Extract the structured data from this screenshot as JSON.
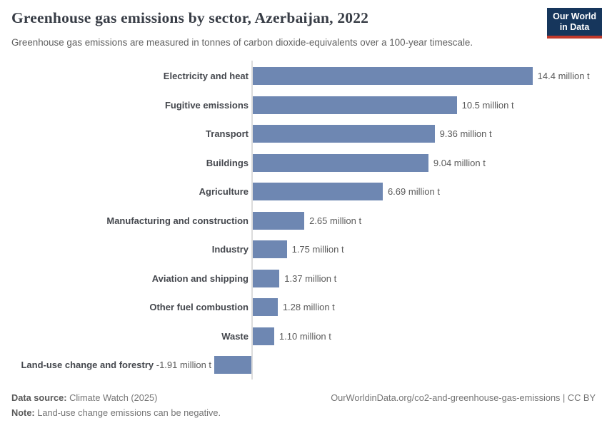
{
  "header": {
    "title": "Greenhouse gas emissions by sector, Azerbaijan, 2022",
    "subtitle": "Greenhouse gas emissions are measured in tonnes of carbon dioxide-equivalents over a 100-year timescale.",
    "logo": {
      "line1": "Our World",
      "line2": "in Data"
    }
  },
  "chart_data": {
    "type": "bar",
    "orientation": "horizontal",
    "title": "Greenhouse gas emissions by sector, Azerbaijan, 2022",
    "unit": "million t",
    "xlim": [
      -2,
      15
    ],
    "grid": false,
    "legend": "none",
    "categories": [
      "Electricity and heat",
      "Fugitive emissions",
      "Transport",
      "Buildings",
      "Agriculture",
      "Manufacturing and construction",
      "Industry",
      "Aviation and shipping",
      "Other fuel combustion",
      "Waste",
      "Land-use change and forestry"
    ],
    "values": [
      14.4,
      10.5,
      9.36,
      9.04,
      6.69,
      2.65,
      1.75,
      1.37,
      1.28,
      1.1,
      -1.91
    ],
    "rows": [
      {
        "category": "Electricity and heat",
        "value": 14.4,
        "display": "14.4 million t"
      },
      {
        "category": "Fugitive emissions",
        "value": 10.5,
        "display": "10.5 million t"
      },
      {
        "category": "Transport",
        "value": 9.36,
        "display": "9.36 million t"
      },
      {
        "category": "Buildings",
        "value": 9.04,
        "display": "9.04 million t"
      },
      {
        "category": "Agriculture",
        "value": 6.69,
        "display": "6.69 million t"
      },
      {
        "category": "Manufacturing and construction",
        "value": 2.65,
        "display": "2.65 million t"
      },
      {
        "category": "Industry",
        "value": 1.75,
        "display": "1.75 million t"
      },
      {
        "category": "Aviation and shipping",
        "value": 1.37,
        "display": "1.37 million t"
      },
      {
        "category": "Other fuel combustion",
        "value": 1.28,
        "display": "1.28 million t"
      },
      {
        "category": "Waste",
        "value": 1.1,
        "display": "1.10 million t"
      },
      {
        "category": "Land-use change and forestry",
        "value": -1.91,
        "display": "-1.91 million t"
      }
    ],
    "colors": {
      "bar": "#6e87b2",
      "axis_line": "#dcdcdc",
      "title": "#383d46",
      "subtitle": "#616161",
      "category_label": "#44474d",
      "value_label": "#5b5b5b",
      "footer_text": "#757575",
      "logo_background": "#16365c",
      "logo_accent": "#c0392b"
    }
  },
  "footer": {
    "datasource_label": "Data source:",
    "datasource_value": " Climate Watch (2025)",
    "note_label": "Note:",
    "note_value": " Land-use change emissions can be negative.",
    "right": "OurWorldinData.org/co2-and-greenhouse-gas-emissions | CC BY"
  }
}
